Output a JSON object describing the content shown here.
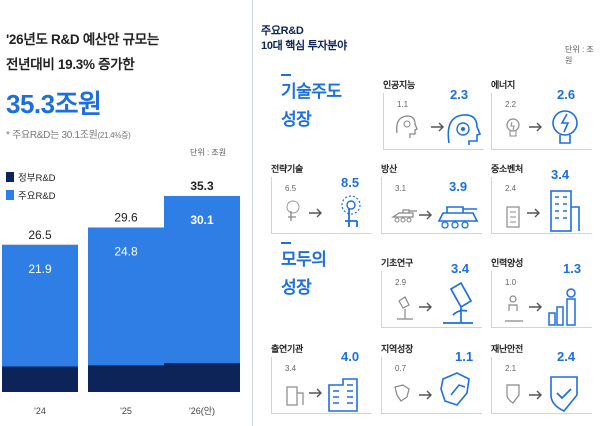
{
  "left": {
    "headline1": "'26년도 R&D 예산안 규모는",
    "headline2": "전년대비 19.3% 증가한",
    "big_value": "35.3조원",
    "note_main": "* 주요R&D는 30.1조원",
    "note_small": "(21.4%증)",
    "unit": "단위 : 조원",
    "legend": [
      {
        "label": "정부R&D",
        "color": "#0d2458"
      },
      {
        "label": "주요R&D",
        "color": "#2e7ee6"
      }
    ]
  },
  "chart_data": {
    "type": "bar",
    "categories": [
      "'24",
      "'25",
      "'26(안)"
    ],
    "series": [
      {
        "name": "정부R&D",
        "values": [
          26.5,
          29.6,
          35.3
        ],
        "color": "#0d2458"
      },
      {
        "name": "주요R&D",
        "values": [
          21.9,
          24.8,
          30.1
        ],
        "color": "#2e7ee6"
      }
    ],
    "title": "",
    "xlabel": "",
    "ylabel": "",
    "unit": "조원",
    "ylim": [
      0,
      35.3
    ],
    "legend_position": "top-left",
    "grid": false
  },
  "right": {
    "title1": "주요R&D",
    "title2": "10대 핵심 투자분야",
    "unit": "단위 : 조원",
    "sections": [
      {
        "label1": "기술주도",
        "label2": "성장"
      },
      {
        "label1": "모두의",
        "label2": "성장"
      }
    ],
    "cards": [
      {
        "name": "인공지능",
        "old": "1.1",
        "new": "2.3",
        "icon": "ai-head-icon"
      },
      {
        "name": "에너지",
        "old": "2.2",
        "new": "2.6",
        "icon": "lightbulb-icon"
      },
      {
        "name": "전략기술",
        "old": "6.5",
        "new": "8.5",
        "icon": "touch-tech-icon"
      },
      {
        "name": "방산",
        "old": "3.1",
        "new": "3.9",
        "icon": "tank-icon"
      },
      {
        "name": "중소벤처",
        "old": "2.4",
        "new": "3.4",
        "icon": "building-icon"
      },
      {
        "name": "기초연구",
        "old": "2.9",
        "new": "3.4",
        "icon": "microscope-icon"
      },
      {
        "name": "인력양성",
        "old": "1.0",
        "new": "1.3",
        "icon": "person-growth-icon"
      },
      {
        "name": "출연기관",
        "old": "3.4",
        "new": "4.0",
        "icon": "institute-building-icon"
      },
      {
        "name": "지역성장",
        "old": "0.7",
        "new": "1.1",
        "icon": "region-map-icon"
      },
      {
        "name": "재난안전",
        "old": "2.1",
        "new": "2.4",
        "icon": "safety-shield-icon"
      }
    ]
  }
}
